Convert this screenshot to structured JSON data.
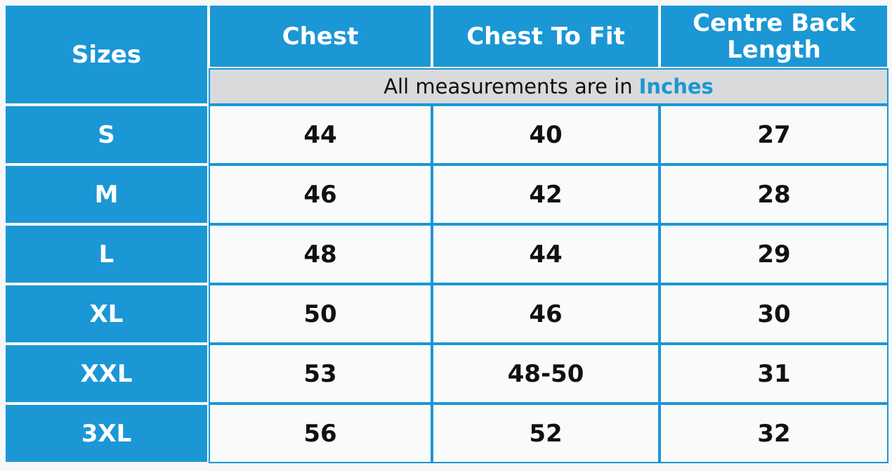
{
  "header": {
    "sizes": "Sizes",
    "columns": [
      "Chest",
      "Chest To Fit",
      "Centre Back Length"
    ],
    "note": "All measurements are in",
    "unit": "Inches"
  },
  "table": {
    "rows": [
      [
        "S",
        44,
        40,
        27
      ],
      [
        "M",
        46,
        42,
        28
      ],
      [
        "L",
        48,
        44,
        29
      ],
      [
        "XL",
        50,
        46,
        30
      ],
      [
        "XXL",
        53,
        "48-50",
        31
      ],
      [
        "3XL",
        56,
        52,
        32
      ]
    ]
  }
}
